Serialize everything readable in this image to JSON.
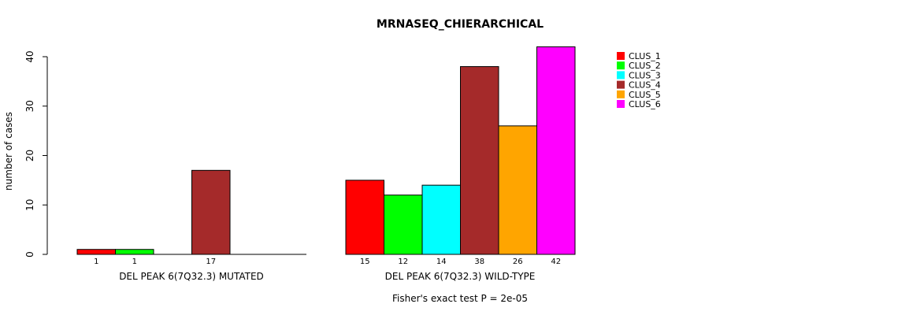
{
  "chart_data": {
    "type": "bar",
    "title": "MRNASEQ_CHIERARCHICAL",
    "ylabel": "number of cases",
    "ylim": [
      0,
      42
    ],
    "yticks": [
      0,
      10,
      20,
      30,
      40
    ],
    "groups": [
      {
        "label": "DEL PEAK  6(7Q32.3) MUTATED",
        "values": [
          1,
          1,
          0,
          17,
          0,
          0
        ],
        "count_labels": [
          "1",
          "1",
          "",
          "17",
          "",
          ""
        ]
      },
      {
        "label": "DEL PEAK  6(7Q32.3) WILD-TYPE",
        "values": [
          15,
          12,
          14,
          38,
          26,
          42
        ],
        "count_labels": [
          "15",
          "12",
          "14",
          "38",
          "26",
          "42"
        ]
      }
    ],
    "series": [
      {
        "name": "CLUS_1",
        "color": "#ff0000"
      },
      {
        "name": "CLUS_2",
        "color": "#00ff00"
      },
      {
        "name": "CLUS_3",
        "color": "#00ffff"
      },
      {
        "name": "CLUS_4",
        "color": "#a52a2a"
      },
      {
        "name": "CLUS_5",
        "color": "#ffa500"
      },
      {
        "name": "CLUS_6",
        "color": "#ff00ff"
      }
    ],
    "legend_position": "top-right",
    "grid": false
  },
  "footnote": "Fisher's exact test P = 2e-05"
}
